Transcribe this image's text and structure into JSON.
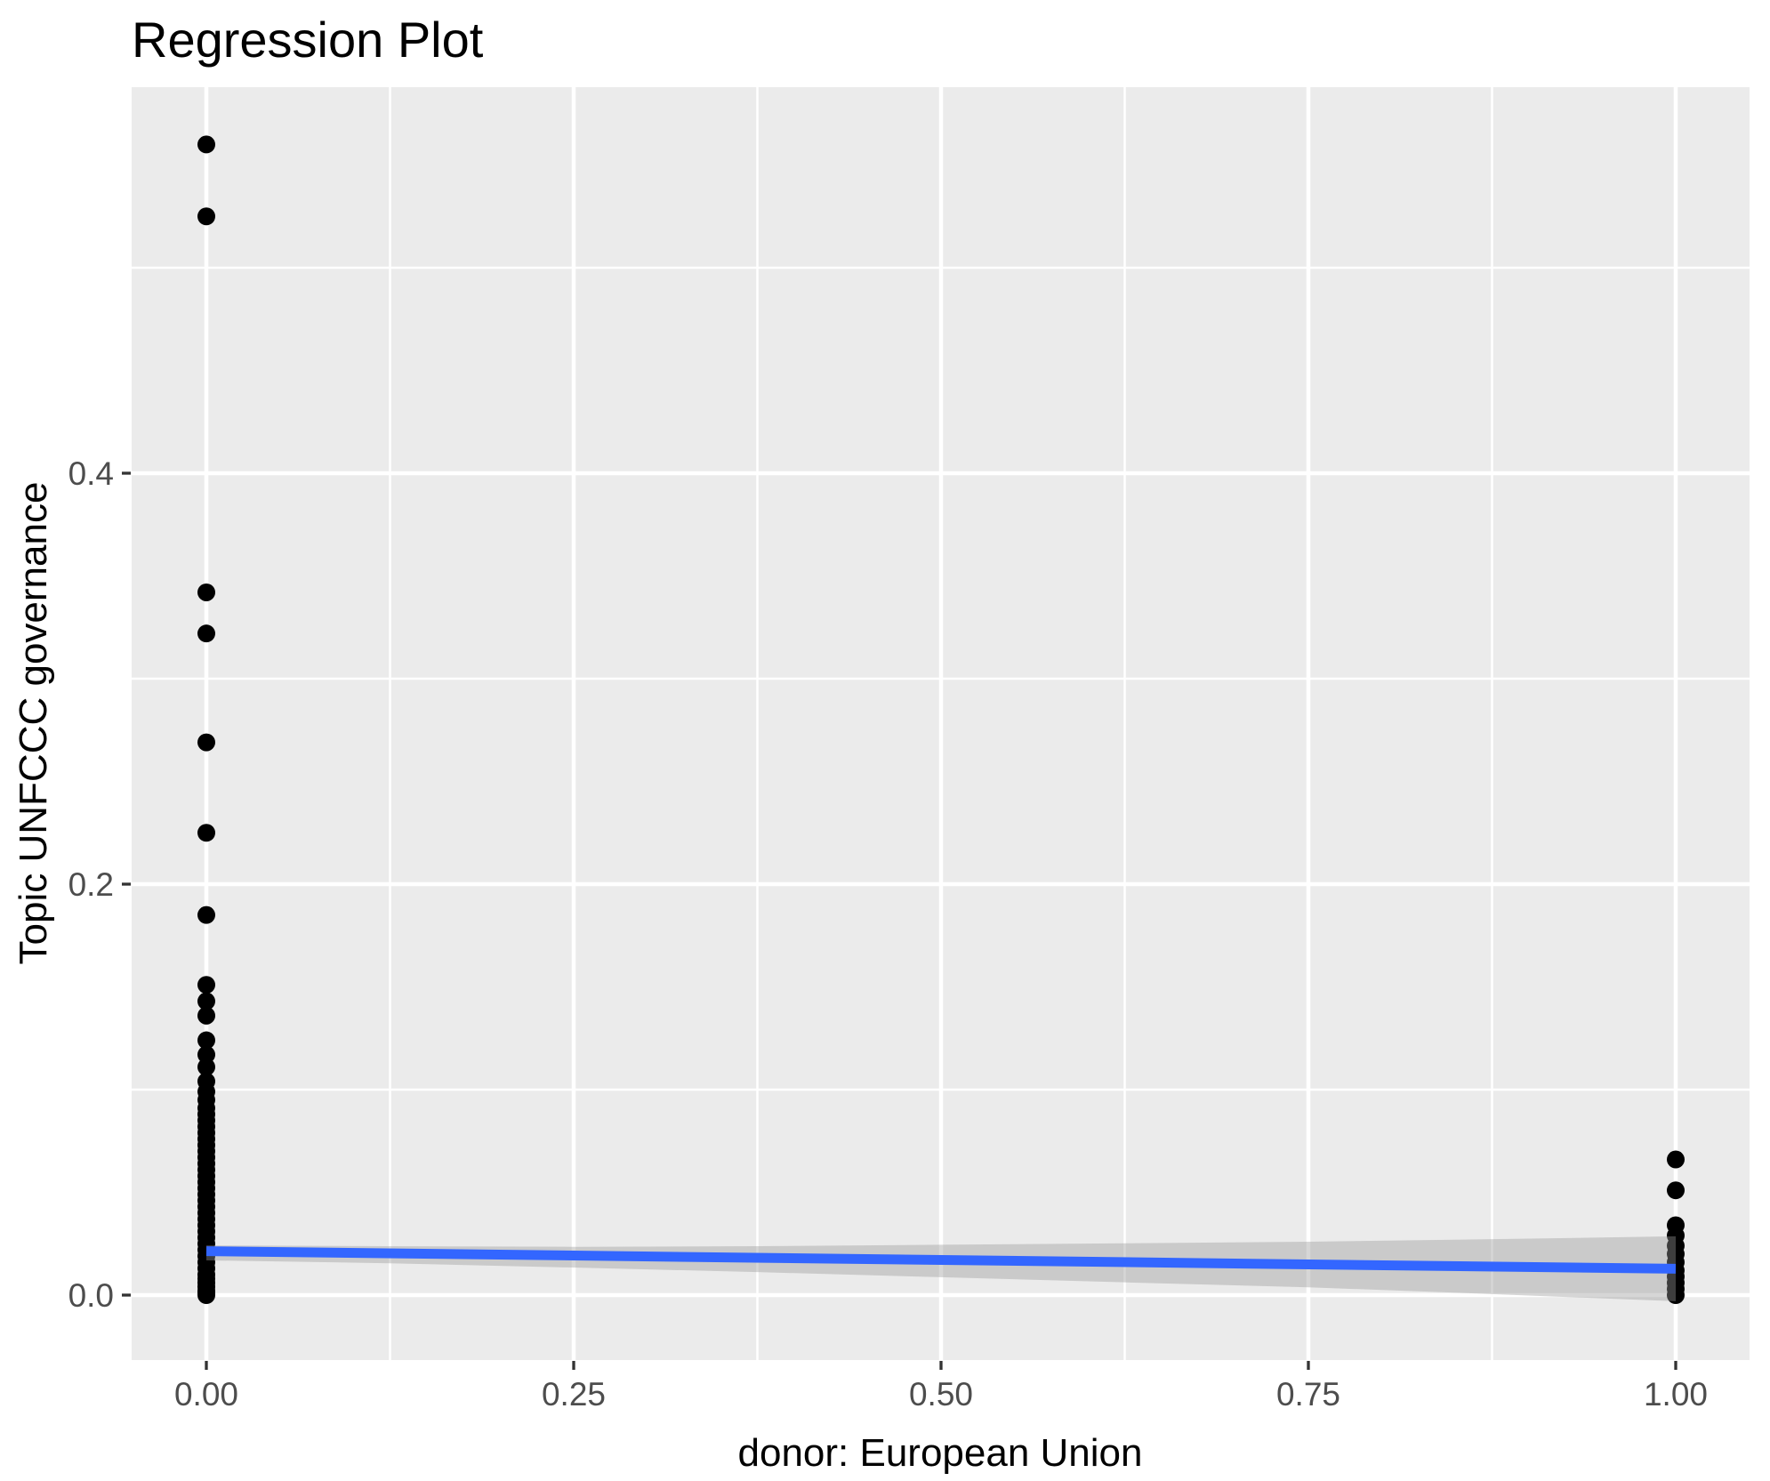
{
  "chart_data": {
    "type": "scatter",
    "title": "Regression Plot",
    "xlabel": "donor: European Union",
    "ylabel": "Topic UNFCCC governance",
    "x_ticks": [
      {
        "value": 0.0,
        "label": "0.00"
      },
      {
        "value": 0.25,
        "label": "0.25"
      },
      {
        "value": 0.5,
        "label": "0.50"
      },
      {
        "value": 0.75,
        "label": "0.75"
      },
      {
        "value": 1.0,
        "label": "1.00"
      }
    ],
    "y_ticks": [
      {
        "value": 0.0,
        "label": "0.0"
      },
      {
        "value": 0.2,
        "label": "0.2"
      },
      {
        "value": 0.4,
        "label": "0.4"
      }
    ],
    "x_minor_gridlines": [
      0.125,
      0.375,
      0.625,
      0.875
    ],
    "y_minor_gridlines": [
      0.1,
      0.3,
      0.5
    ],
    "xlim": [
      -0.05,
      1.05
    ],
    "ylim": [
      -0.032,
      0.588
    ],
    "grid": "white major and minor gridlines on gray panel",
    "legend_position": "none",
    "colors": {
      "panel_background": "#EBEBEB",
      "gridline": "#FFFFFF",
      "point": "#000000",
      "fit_line": "#3366FF",
      "ci_ribbon": "#999999",
      "tick_mark": "#333333",
      "tick_label": "#4D4D4D",
      "text": "#000000"
    },
    "series": [
      {
        "name": "observations at donor = 0",
        "type": "points",
        "x": 0,
        "values": [
          0.56,
          0.525,
          0.342,
          0.322,
          0.269,
          0.225,
          0.185,
          0.151,
          0.143,
          0.136,
          0.124,
          0.117,
          0.111,
          0.104,
          0.099,
          0.095,
          0.091,
          0.088,
          0.085,
          0.082,
          0.079,
          0.076,
          0.073,
          0.07,
          0.067,
          0.064,
          0.061,
          0.058,
          0.055,
          0.052,
          0.049,
          0.046,
          0.043,
          0.04,
          0.037,
          0.034,
          0.031,
          0.028,
          0.025,
          0.022,
          0.019,
          0.016,
          0.013,
          0.01,
          0.008,
          0.006,
          0.004,
          0.002,
          0.001,
          0.0
        ]
      },
      {
        "name": "observations at donor = 1",
        "type": "points",
        "x": 1,
        "values": [
          0.066,
          0.051,
          0.034,
          0.029,
          0.024,
          0.02,
          0.016,
          0.012,
          0.009,
          0.006,
          0.003,
          0.0
        ]
      }
    ],
    "fit": {
      "name": "linear regression fit",
      "x": [
        0,
        1
      ],
      "y": [
        0.0214,
        0.0128
      ]
    },
    "ci": {
      "name": "95% confidence ribbon",
      "x": [
        0,
        0.125,
        0.25,
        0.375,
        0.5,
        0.625,
        0.75,
        0.875,
        1
      ],
      "upper": [
        0.0242,
        0.0238,
        0.0235,
        0.0238,
        0.0245,
        0.0252,
        0.026,
        0.0272,
        0.0286
      ],
      "lower": [
        0.0169,
        0.0155,
        0.0134,
        0.0112,
        0.0087,
        0.0062,
        0.0038,
        0.0005,
        -0.003
      ],
      "opacity": 0.4
    }
  }
}
